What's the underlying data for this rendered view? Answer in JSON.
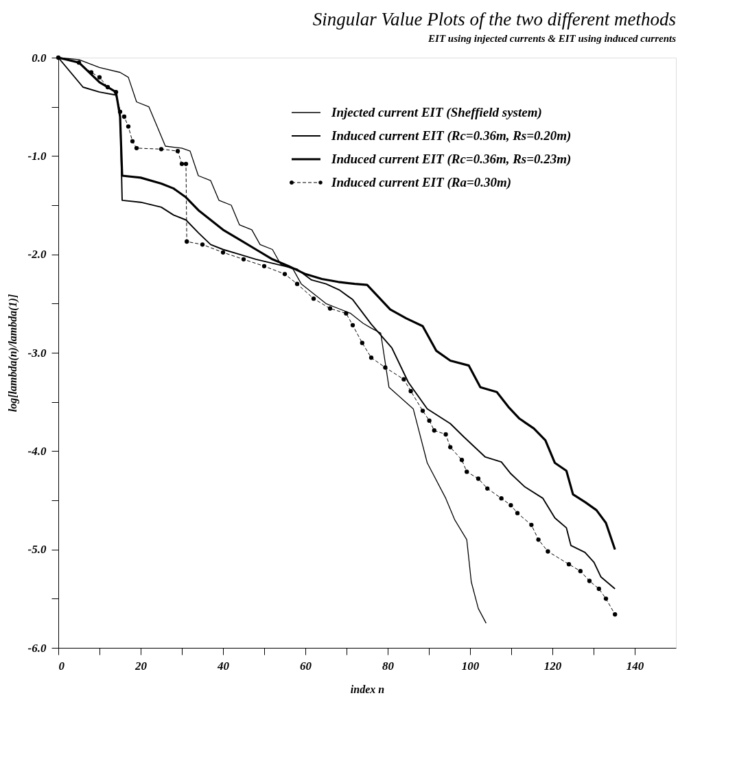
{
  "chart_data": {
    "type": "line",
    "title": "Singular Value Plots of the two different methods",
    "subtitle": "EIT using injected currents & EIT using induced currents",
    "xlabel": "index n",
    "ylabel": "log[lambda(n)/lambda(1)]",
    "xlim": [
      0,
      150
    ],
    "ylim": [
      -6,
      0
    ],
    "xticks": [
      0,
      {
        "value": 10,
        "label": null
      },
      20,
      {
        "value": 30,
        "label": null
      },
      40,
      {
        "value": 50,
        "label": null
      },
      60,
      {
        "value": 70,
        "label": null
      },
      80,
      {
        "value": 90,
        "label": null
      },
      100,
      {
        "value": 110,
        "label": null
      },
      120,
      {
        "value": 130,
        "label": null
      },
      140
    ],
    "yticks": [
      {
        "value": -6,
        "label": "-6.0"
      },
      {
        "value": -5.5,
        "label": null
      },
      {
        "value": -5,
        "label": "-5.0"
      },
      {
        "value": -4.5,
        "label": null
      },
      {
        "value": -4,
        "label": "-4.0"
      },
      {
        "value": -3.5,
        "label": null
      },
      {
        "value": -3,
        "label": "-3.0"
      },
      {
        "value": -2.5,
        "label": null
      },
      {
        "value": -2,
        "label": "-2.0"
      },
      {
        "value": -1.5,
        "label": null
      },
      {
        "value": -1,
        "label": "-1.0"
      },
      {
        "value": -0.5,
        "label": null
      },
      {
        "value": 0,
        "label": "0.0"
      }
    ],
    "grid": false,
    "legend": "top right",
    "series": [
      {
        "name": "Injected current EIT (Sheffield  system)",
        "color": "#000000",
        "line_style": "solid",
        "marker": "none",
        "x": [
          0,
          5,
          10,
          15,
          17,
          19,
          22,
          24,
          26,
          30,
          32,
          34,
          37,
          39,
          42,
          44,
          47,
          49,
          52,
          54,
          57,
          59,
          62,
          65,
          68,
          71,
          74,
          76,
          78.3,
          80.3,
          86.2,
          89.6,
          94.1,
          96.3,
          99.2,
          100.3,
          102,
          103.9
        ],
        "values": [
          0,
          -0.02,
          -0.1,
          -0.15,
          -0.2,
          -0.45,
          -0.5,
          -0.7,
          -0.9,
          -0.92,
          -0.95,
          -1.2,
          -1.25,
          -1.45,
          -1.5,
          -1.7,
          -1.75,
          -1.9,
          -1.95,
          -2.1,
          -2.15,
          -2.3,
          -2.4,
          -2.5,
          -2.55,
          -2.6,
          -2.7,
          -2.75,
          -2.8,
          -3.35,
          -3.57,
          -4.12,
          -4.48,
          -4.7,
          -4.9,
          -5.33,
          -5.6,
          -5.75
        ]
      },
      {
        "name": "Induced current EIT (Rc=0.36m, Rs=0.20m)",
        "color": "#000000",
        "line_style": "solid",
        "marker": "none",
        "x": [
          0,
          3,
          6,
          10,
          14,
          15,
          15.5,
          20,
          25,
          28,
          31,
          34,
          37,
          40,
          44,
          48,
          55,
          58,
          61.5,
          65,
          68.2,
          71.5,
          76,
          81,
          85,
          89.6,
          95.2,
          98.6,
          103.7,
          107.6,
          109.9,
          113.2,
          117.7,
          120.6,
          123.4,
          124.5,
          127.9,
          130.1,
          131.8,
          135.2
        ],
        "values": [
          0,
          -0.15,
          -0.3,
          -0.35,
          -0.38,
          -0.55,
          -1.45,
          -1.47,
          -1.52,
          -1.6,
          -1.65,
          -1.78,
          -1.9,
          -1.95,
          -2.0,
          -2.05,
          -2.12,
          -2.15,
          -2.26,
          -2.3,
          -2.36,
          -2.46,
          -2.71,
          -2.95,
          -3.3,
          -3.57,
          -3.72,
          -3.86,
          -4.06,
          -4.11,
          -4.23,
          -4.36,
          -4.48,
          -4.68,
          -4.78,
          -4.96,
          -5.03,
          -5.13,
          -5.28,
          -5.4
        ]
      },
      {
        "name": "Induced current EIT (Rc=0.36m, Rs=0.23m)",
        "color": "#000000",
        "line_style": "solid",
        "marker": "none",
        "x": [
          0,
          5,
          10,
          14,
          15,
          15.5,
          20,
          25,
          28,
          31,
          34,
          37,
          40,
          44,
          48,
          52,
          56,
          60,
          64,
          68,
          72,
          75,
          80.6,
          84.5,
          88.5,
          91.8,
          95.2,
          99.7,
          102.5,
          106.5,
          109.3,
          112,
          115.5,
          118.3,
          120.6,
          123.4,
          125,
          128,
          130.7,
          133,
          135.2
        ],
        "values": [
          0,
          -0.05,
          -0.25,
          -0.35,
          -0.6,
          -1.2,
          -1.22,
          -1.28,
          -1.33,
          -1.42,
          -1.55,
          -1.65,
          -1.75,
          -1.85,
          -1.95,
          -2.05,
          -2.12,
          -2.2,
          -2.25,
          -2.28,
          -2.3,
          -2.31,
          -2.56,
          -2.65,
          -2.73,
          -2.98,
          -3.08,
          -3.13,
          -3.35,
          -3.4,
          -3.55,
          -3.67,
          -3.77,
          -3.89,
          -4.12,
          -4.2,
          -4.44,
          -4.52,
          -4.6,
          -4.73,
          -5.0
        ]
      },
      {
        "name": "Induced current EIT (Ra=0.30m)",
        "color": "#000000",
        "line_style": "dashed",
        "marker": "circle",
        "x": [
          0,
          5,
          8,
          10,
          12,
          14,
          15,
          16,
          17,
          18,
          19,
          25,
          29,
          30,
          31,
          31.2,
          35,
          40,
          45,
          50,
          55,
          58,
          62,
          66,
          69.9,
          71.5,
          73.8,
          76,
          79.4,
          83.9,
          85.6,
          88.5,
          90.1,
          91.3,
          94.1,
          95.2,
          98,
          99.2,
          102,
          104.2,
          107.6,
          109.9,
          111.5,
          114.9,
          116.6,
          118.9,
          124,
          126.8,
          129,
          131.3,
          133,
          135.2
        ],
        "values": [
          0,
          -0.05,
          -0.15,
          -0.2,
          -0.3,
          -0.35,
          -0.55,
          -0.6,
          -0.7,
          -0.85,
          -0.92,
          -0.93,
          -0.95,
          -1.08,
          -1.08,
          -1.87,
          -1.9,
          -1.98,
          -2.05,
          -2.12,
          -2.2,
          -2.3,
          -2.45,
          -2.55,
          -2.6,
          -2.72,
          -2.9,
          -3.05,
          -3.15,
          -3.27,
          -3.39,
          -3.59,
          -3.69,
          -3.79,
          -3.83,
          -3.96,
          -4.09,
          -4.21,
          -4.28,
          -4.38,
          -4.48,
          -4.55,
          -4.63,
          -4.75,
          -4.9,
          -5.02,
          -5.15,
          -5.22,
          -5.32,
          -5.4,
          -5.5,
          -5.66
        ]
      }
    ]
  }
}
